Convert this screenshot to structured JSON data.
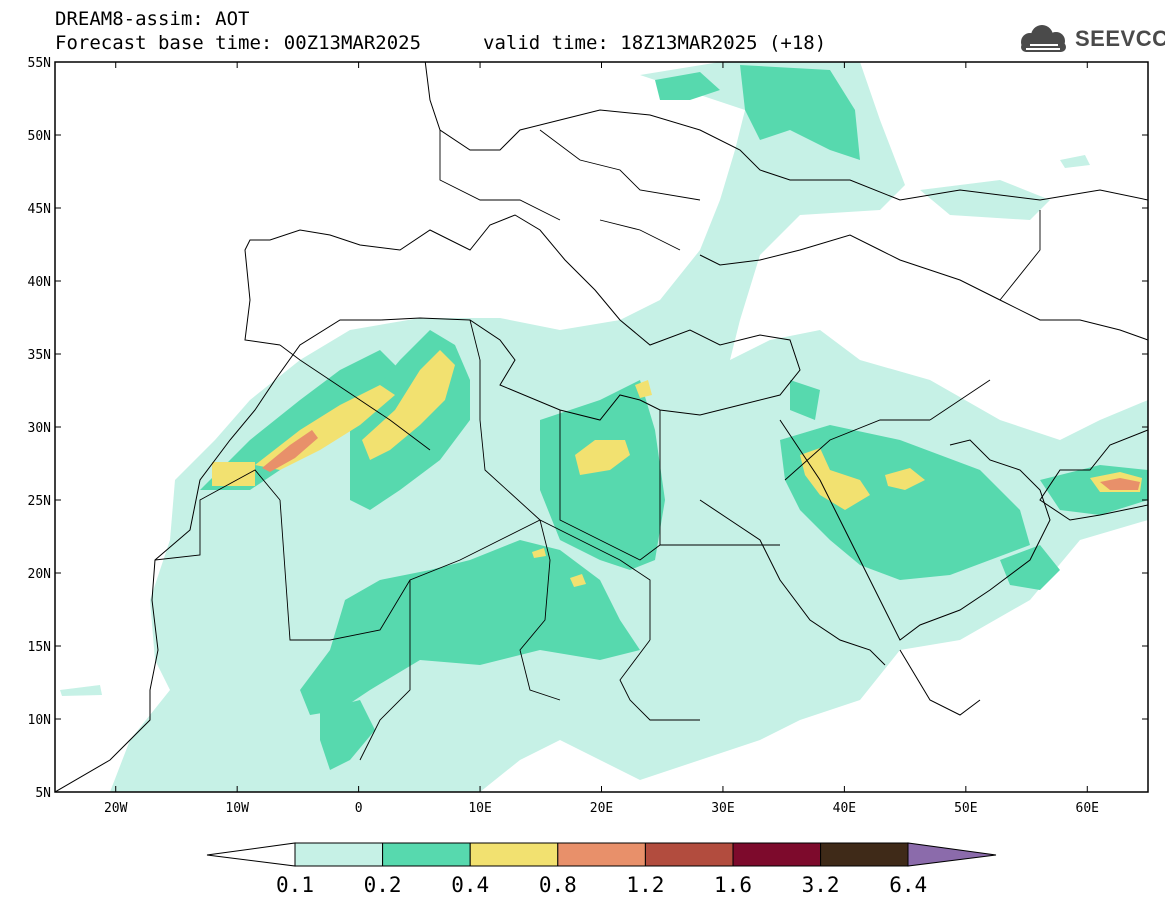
{
  "header": {
    "title": "DREAM8-assim: AOT",
    "base_time": "Forecast base time: 00Z13MAR2025",
    "valid_time": "valid time: 18Z13MAR2025 (+18)"
  },
  "logo": {
    "text": "SEEVCCC",
    "icon": "cloud-icon"
  },
  "map": {
    "variable": "AOT",
    "lon_range": [
      -25,
      65
    ],
    "lat_range": [
      5,
      55
    ],
    "lat_labels": [
      "55N",
      "50N",
      "45N",
      "40N",
      "35N",
      "30N",
      "25N",
      "20N",
      "15N",
      "10N",
      "5N"
    ],
    "lon_labels": [
      "20W",
      "10W",
      "0",
      "10E",
      "20E",
      "30E",
      "40E",
      "50E",
      "60E"
    ]
  },
  "colorbar": {
    "levels": [
      "0.1",
      "0.2",
      "0.4",
      "0.8",
      "1.2",
      "1.6",
      "3.2",
      "6.4"
    ],
    "colors": [
      "#c6f1e6",
      "#57d9ae",
      "#f2e170",
      "#e8906a",
      "#b24c3e",
      "#7d0a2c",
      "#3f2a18"
    ],
    "under_color": "#ffffff",
    "over_color": "#8b6bab"
  },
  "colors": {
    "very_light": "#c6f1e6",
    "light": "#57d9ae",
    "medium": "#f2e170",
    "high": "#e8906a"
  }
}
